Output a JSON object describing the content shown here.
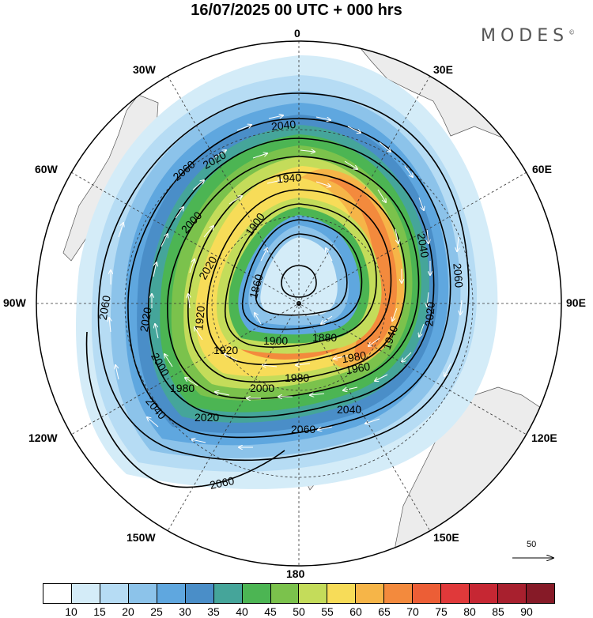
{
  "title": "16/07/2025  00 UTC  + 000 hrs",
  "brand": "MODES",
  "brand_mark": "©",
  "lon_labels": {
    "n": "0",
    "e30": "30E",
    "e60": "60E",
    "e90": "90E",
    "e120": "120E",
    "e150": "150E",
    "s": "180",
    "w150": "150W",
    "w120": "120W",
    "w90": "90W",
    "w60": "60W",
    "w30": "30W"
  },
  "wind_scale_label": "50",
  "colorbar": {
    "colors": [
      "#ffffff",
      "#d4ecf8",
      "#b6dcf4",
      "#8cc3ea",
      "#5fa7df",
      "#4a8ec8",
      "#45a59a",
      "#4cb553",
      "#7bc24c",
      "#c4dc5a",
      "#f7dc58",
      "#f6b548",
      "#f38a3d",
      "#ec5e36",
      "#e0393a",
      "#c62733",
      "#a8202e",
      "#861a27"
    ],
    "ticks": [
      "10",
      "15",
      "20",
      "25",
      "30",
      "35",
      "40",
      "45",
      "50",
      "55",
      "60",
      "65",
      "70",
      "75",
      "80",
      "85",
      "90"
    ]
  },
  "contour_labels": [
    {
      "text": "2040"
    },
    {
      "text": "2060"
    },
    {
      "text": "2020"
    },
    {
      "text": "1940"
    },
    {
      "text": "2000"
    },
    {
      "text": "1900"
    },
    {
      "text": "1860"
    },
    {
      "text": "1920"
    },
    {
      "text": "2040"
    },
    {
      "text": "2060"
    },
    {
      "text": "2020"
    },
    {
      "text": "2060"
    },
    {
      "text": "2020"
    },
    {
      "text": "1920"
    },
    {
      "text": "1900"
    },
    {
      "text": "1880"
    },
    {
      "text": "1940"
    },
    {
      "text": "1960"
    },
    {
      "text": "1980"
    },
    {
      "text": "1980"
    },
    {
      "text": "2000"
    },
    {
      "text": "2020"
    },
    {
      "text": "2040"
    },
    {
      "text": "2000"
    },
    {
      "text": "2040"
    },
    {
      "text": "2060"
    },
    {
      "text": "2060"
    },
    {
      "text": "2020"
    },
    {
      "text": "1980"
    }
  ]
}
